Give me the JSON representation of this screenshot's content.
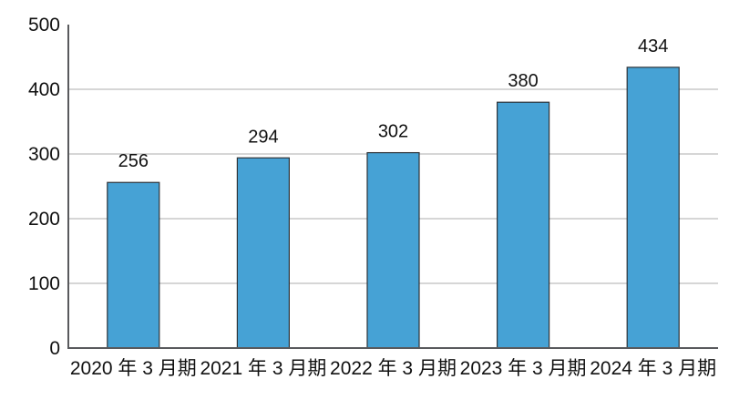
{
  "chart_data": {
    "type": "bar",
    "title": "",
    "xlabel": "",
    "ylabel": "",
    "categories": [
      "2020 年 3 月期",
      "2021 年 3 月期",
      "2022 年 3 月期",
      "2023 年 3 月期",
      "2024 年 3 月期"
    ],
    "values": [
      256,
      294,
      302,
      380,
      434
    ],
    "value_labels": [
      "256",
      "294",
      "302",
      "380",
      "434"
    ],
    "ylim": [
      0,
      500
    ],
    "yticks": [
      0,
      100,
      200,
      300,
      400,
      500
    ],
    "ytick_labels": [
      "0",
      "100",
      "200",
      "300",
      "400",
      "500"
    ],
    "grid": true,
    "gridline_ticks": [
      100,
      200,
      300,
      400
    ],
    "legend": "none",
    "colors": {
      "bar_fill": "#46a2d5",
      "bar_stroke": "#2e3338",
      "grid_line": "#c9c9c9",
      "axis_line": "#595a5d",
      "text": "#111111",
      "background": "#ffffff"
    }
  }
}
